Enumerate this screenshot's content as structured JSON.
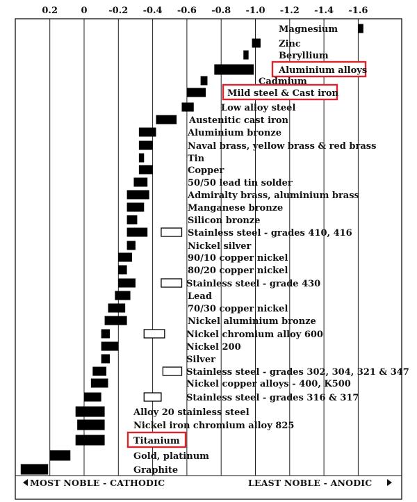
{
  "chart_data": {
    "type": "range-bar",
    "x_ticks": [
      0.2,
      0,
      -0.2,
      -0.4,
      -0.6,
      -0.8,
      -1.0,
      -1.2,
      -1.4,
      -1.6
    ],
    "x_tick_labels": [
      "0.2",
      "0",
      "-0.2",
      "-0.4",
      "-0.6",
      "-0.8",
      "-1.0",
      "-1.2",
      "-1.4",
      "-1.6"
    ],
    "xlim": [
      0.3,
      -1.75
    ],
    "grid": true,
    "footer_left": "MOST NOBLE - CATHODIC",
    "footer_right": "LEAST NOBLE - ANODIC",
    "materials": [
      {
        "name": "Magnesium",
        "range": [
          -1.6,
          -1.63
        ],
        "style": "solid",
        "highlight": false
      },
      {
        "name": "Zinc",
        "range": [
          -0.98,
          -1.03
        ],
        "style": "solid",
        "highlight": false
      },
      {
        "name": "Beryllium",
        "range": [
          -0.93,
          -0.96
        ],
        "style": "solid",
        "highlight": false
      },
      {
        "name": "Aluminium alloys",
        "range": [
          -0.76,
          -0.99
        ],
        "style": "solid",
        "highlight": true
      },
      {
        "name": "Cadmium",
        "range": [
          -0.68,
          -0.72
        ],
        "style": "solid",
        "highlight": false
      },
      {
        "name": "Mild steel & Cast iron",
        "range": [
          -0.6,
          -0.71
        ],
        "style": "solid",
        "highlight": true
      },
      {
        "name": "Low alloy steel",
        "range": [
          -0.57,
          -0.64
        ],
        "style": "solid",
        "highlight": false
      },
      {
        "name": "Austenitic cast iron",
        "range": [
          -0.42,
          -0.54
        ],
        "style": "solid",
        "highlight": false
      },
      {
        "name": "Aluminium bronze",
        "range": [
          -0.32,
          -0.42
        ],
        "style": "solid",
        "highlight": false
      },
      {
        "name": "Naval brass, yellow brass & red brass",
        "range": [
          -0.32,
          -0.4
        ],
        "style": "solid",
        "highlight": false
      },
      {
        "name": "Tin",
        "range": [
          -0.32,
          -0.35
        ],
        "style": "solid",
        "highlight": false
      },
      {
        "name": "Copper",
        "range": [
          -0.32,
          -0.4
        ],
        "style": "solid",
        "highlight": false
      },
      {
        "name": "50/50 lead tin solder",
        "range": [
          -0.29,
          -0.37
        ],
        "style": "solid",
        "highlight": false
      },
      {
        "name": "Admiralty brass, aluminium brass",
        "range": [
          -0.25,
          -0.38
        ],
        "style": "solid",
        "highlight": false
      },
      {
        "name": "Manganese bronze",
        "range": [
          -0.25,
          -0.35
        ],
        "style": "solid",
        "highlight": false
      },
      {
        "name": "Silicon bronze",
        "range": [
          -0.25,
          -0.31
        ],
        "style": "solid",
        "highlight": false
      },
      {
        "name": "Stainless steel - grades 410, 416",
        "range": [
          -0.25,
          -0.37
        ],
        "style": "solid",
        "passive_range": [
          -0.45,
          -0.57
        ],
        "highlight": false
      },
      {
        "name": "Nickel silver",
        "range": [
          -0.25,
          -0.3
        ],
        "style": "solid",
        "highlight": false
      },
      {
        "name": "90/10 copper nickel",
        "range": [
          -0.2,
          -0.28
        ],
        "style": "solid",
        "highlight": false
      },
      {
        "name": "80/20 copper nickel",
        "range": [
          -0.2,
          -0.25
        ],
        "style": "solid",
        "highlight": false
      },
      {
        "name": "Stainless steel - grade 430",
        "range": [
          -0.2,
          -0.3
        ],
        "style": "solid",
        "passive_range": [
          -0.45,
          -0.57
        ],
        "highlight": false
      },
      {
        "name": "Lead",
        "range": [
          -0.18,
          -0.27
        ],
        "style": "solid",
        "highlight": false
      },
      {
        "name": "70/30 copper nickel",
        "range": [
          -0.14,
          -0.24
        ],
        "style": "solid",
        "highlight": false
      },
      {
        "name": "Nickel aluminium bronze",
        "range": [
          -0.12,
          -0.25
        ],
        "style": "solid",
        "highlight": false
      },
      {
        "name": "Nickel chromium alloy 600",
        "range": [
          -0.1,
          -0.15
        ],
        "style": "solid",
        "passive_range": [
          -0.35,
          -0.47
        ],
        "highlight": false
      },
      {
        "name": "Nickel 200",
        "range": [
          -0.1,
          -0.2
        ],
        "style": "solid",
        "highlight": false
      },
      {
        "name": "Silver",
        "range": [
          -0.1,
          -0.15
        ],
        "style": "solid",
        "highlight": false
      },
      {
        "name": "Stainless steel - grades 302, 304, 321 & 347",
        "range": [
          -0.05,
          -0.13
        ],
        "style": "solid",
        "passive_range": [
          -0.46,
          -0.57
        ],
        "highlight": false
      },
      {
        "name": "Nickel copper alloys - 400, K500",
        "range": [
          -0.04,
          -0.14
        ],
        "style": "solid",
        "highlight": false
      },
      {
        "name": "Stainless steel - grades 316 & 317",
        "range": [
          0.0,
          -0.1
        ],
        "style": "solid",
        "passive_range": [
          -0.35,
          -0.45
        ],
        "highlight": false
      },
      {
        "name": "Alloy 20 stainless steel",
        "range": [
          0.05,
          -0.12
        ],
        "style": "solid",
        "highlight": false
      },
      {
        "name": "Nickel iron chromium alloy 825",
        "range": [
          0.04,
          -0.12
        ],
        "style": "solid",
        "highlight": false
      },
      {
        "name": "Titanium",
        "range": [
          0.05,
          -0.12
        ],
        "style": "solid",
        "highlight": true
      },
      {
        "name": "Gold, platinum",
        "range": [
          0.2,
          0.08
        ],
        "style": "solid",
        "highlight": false
      },
      {
        "name": "Graphite",
        "range": [
          0.37,
          0.21
        ],
        "style": "solid",
        "highlight": false
      }
    ]
  }
}
